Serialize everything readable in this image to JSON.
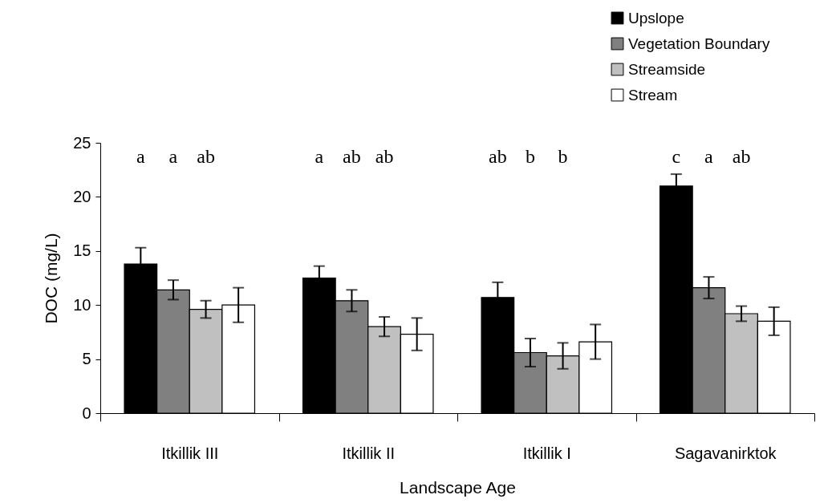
{
  "chart_data": {
    "type": "bar",
    "xlabel": "Landscape Age",
    "ylabel": "DOC (mg/L)",
    "categories": [
      "Itkillik III",
      "Itkillik II",
      "Itkillik I",
      "Sagavanirktok"
    ],
    "series": [
      {
        "name": "Upslope",
        "color": "#000000",
        "values": [
          13.8,
          12.5,
          10.7,
          21.0
        ],
        "errors": [
          1.5,
          1.1,
          1.4,
          1.1
        ]
      },
      {
        "name": "Vegetation Boundary",
        "color": "#808080",
        "values": [
          11.4,
          10.4,
          5.6,
          11.6
        ],
        "errors": [
          0.9,
          1.0,
          1.3,
          1.0
        ]
      },
      {
        "name": "Streamside",
        "color": "#c0c0c0",
        "values": [
          9.6,
          8.0,
          5.3,
          9.2
        ],
        "errors": [
          0.8,
          0.9,
          1.2,
          0.7
        ]
      },
      {
        "name": "Stream",
        "color": "#ffffff",
        "values": [
          10.0,
          7.3,
          6.6,
          8.5
        ],
        "errors": [
          1.6,
          1.5,
          1.6,
          1.3
        ]
      }
    ],
    "ylim": [
      0,
      25
    ],
    "yticks": [
      0,
      5,
      10,
      15,
      20,
      25
    ],
    "grid": false,
    "legend": "top right",
    "annotations": [
      "a",
      "a",
      "ab",
      "a",
      "ab",
      "ab",
      "ab",
      "b",
      "b",
      "c",
      "a",
      "ab"
    ]
  }
}
